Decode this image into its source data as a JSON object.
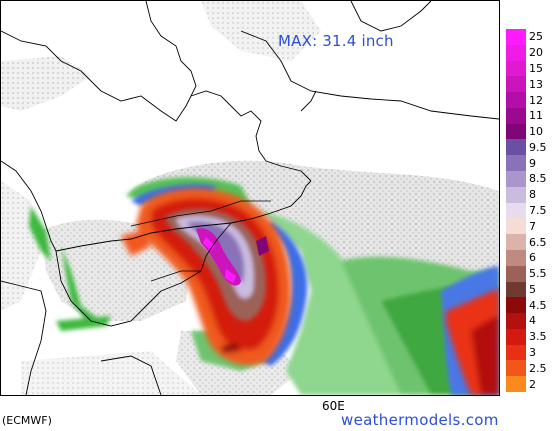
{
  "map": {
    "max_text": "MAX: 31.4 inch",
    "lon_tick_label": "60E",
    "model_label": "(ECMWF)",
    "site_label": "weathermodels.com"
  },
  "legend": {
    "unit": "inch",
    "levels": [
      {
        "label": "25",
        "color": "#ff1aff"
      },
      {
        "label": "20",
        "color": "#f01ce6"
      },
      {
        "label": "15",
        "color": "#e01ad0"
      },
      {
        "label": "13",
        "color": "#cc14bc"
      },
      {
        "label": "12",
        "color": "#b30fa8"
      },
      {
        "label": "11",
        "color": "#990a90"
      },
      {
        "label": "10",
        "color": "#800678"
      },
      {
        "label": "9.5",
        "color": "#6a4fa3"
      },
      {
        "label": "9",
        "color": "#8a72b8"
      },
      {
        "label": "8.5",
        "color": "#a996cc"
      },
      {
        "label": "8",
        "color": "#c9bcdf"
      },
      {
        "label": "7.5",
        "color": "#e6dcee"
      },
      {
        "label": "7",
        "color": "#f6dcd6"
      },
      {
        "label": "6.5",
        "color": "#dcb3aa"
      },
      {
        "label": "6",
        "color": "#bf8a80"
      },
      {
        "label": "5.5",
        "color": "#9c6258"
      },
      {
        "label": "5",
        "color": "#703a30"
      },
      {
        "label": "4.5",
        "color": "#8c0a0a"
      },
      {
        "label": "4",
        "color": "#b31010"
      },
      {
        "label": "3.5",
        "color": "#d41a10"
      },
      {
        "label": "3",
        "color": "#ea3014"
      },
      {
        "label": "2.5",
        "color": "#f2561a"
      },
      {
        "label": "2",
        "color": "#fa8a1e"
      }
    ]
  },
  "colors": {
    "title_blue": "#2b4fd6",
    "land_border": "#000000",
    "light_precip": "#c8c8c8",
    "green_precip": "#3cb93c",
    "blue_precip": "#3c6ee6"
  }
}
